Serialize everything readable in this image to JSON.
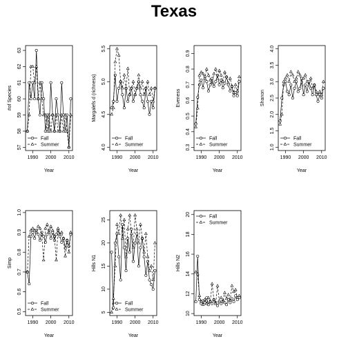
{
  "title": "Texas",
  "legend_fall": "Fall",
  "legend_summer": "Summer",
  "years": [
    1987,
    1988,
    1989,
    1990,
    1991,
    1992,
    1993,
    1994,
    1995,
    1996,
    1997,
    1998,
    1999,
    2000,
    2001,
    2002,
    2003,
    2004,
    2005,
    2006,
    2007,
    2008,
    2009,
    2010,
    2011
  ],
  "chart_data": [
    {
      "type": "line",
      "ylabel": "#of Species",
      "xlabel": "Year",
      "xlim": [
        1986,
        2012
      ],
      "ylim": [
        56.8,
        63.3
      ],
      "x_ticks": [
        1990,
        2000,
        2010
      ],
      "y_ticks": [
        57,
        58,
        59,
        60,
        61,
        62,
        63
      ],
      "legend_position": "bottom-left",
      "series": [
        {
          "name": "Fall",
          "marker": "circle",
          "linestyle": "solid",
          "values": [
            58,
            61,
            60,
            61,
            60,
            63,
            60,
            59,
            61,
            60,
            58,
            59,
            58,
            61,
            59,
            58,
            60,
            59,
            58,
            61,
            59,
            58,
            59,
            57,
            60
          ]
        },
        {
          "name": "Summer",
          "marker": "triangle",
          "linestyle": "dashed",
          "values": [
            58,
            59,
            62,
            62,
            61,
            62,
            60,
            61,
            60,
            59,
            59,
            58,
            59,
            58,
            59,
            58,
            59,
            58,
            58,
            59,
            58,
            59,
            58,
            57,
            59
          ]
        }
      ]
    },
    {
      "type": "line",
      "ylabel": "Margalefs d (richness)",
      "xlabel": "Year",
      "xlim": [
        1986,
        2012
      ],
      "ylim": [
        3.95,
        5.55
      ],
      "x_ticks": [
        1990,
        2000,
        2010
      ],
      "y_ticks": [
        4.0,
        4.5,
        5.0,
        5.5
      ],
      "legend_position": "bottom-left",
      "series": [
        {
          "name": "Fall",
          "marker": "circle",
          "linestyle": "solid",
          "values": [
            4.6,
            4.7,
            5.1,
            4.7,
            4.9,
            5.0,
            4.8,
            4.6,
            4.9,
            4.7,
            4.8,
            4.9,
            4.7,
            4.8,
            4.9,
            5.0,
            4.8,
            4.7,
            4.6,
            4.9,
            4.7,
            4.5,
            4.7,
            4.6,
            4.9
          ]
        },
        {
          "name": "Summer",
          "marker": "triangle",
          "linestyle": "dashed",
          "values": [
            4.5,
            4.6,
            5.3,
            5.5,
            5.4,
            5.0,
            4.9,
            5.1,
            4.9,
            5.2,
            4.8,
            4.9,
            5.0,
            4.8,
            4.9,
            5.1,
            4.9,
            5.0,
            4.8,
            4.9,
            5.0,
            4.8,
            4.9,
            4.7,
            4.9
          ]
        }
      ]
    },
    {
      "type": "line",
      "ylabel": "Eveness",
      "xlabel": "Year",
      "xlim": [
        1986,
        2012
      ],
      "ylim": [
        0.28,
        0.95
      ],
      "x_ticks": [
        1990,
        2000,
        2010
      ],
      "y_ticks": [
        0.3,
        0.4,
        0.5,
        0.6,
        0.7,
        0.8,
        0.9
      ],
      "legend_position": "bottom-left",
      "series": [
        {
          "name": "Fall",
          "marker": "circle",
          "linestyle": "solid",
          "values": [
            0.45,
            0.62,
            0.7,
            0.73,
            0.68,
            0.75,
            0.72,
            0.66,
            0.7,
            0.74,
            0.69,
            0.72,
            0.76,
            0.7,
            0.73,
            0.68,
            0.71,
            0.75,
            0.7,
            0.66,
            0.69,
            0.63,
            0.65,
            0.63,
            0.72
          ]
        },
        {
          "name": "Summer",
          "marker": "triangle",
          "linestyle": "dashed",
          "values": [
            0.43,
            0.55,
            0.76,
            0.78,
            0.77,
            0.74,
            0.8,
            0.76,
            0.73,
            0.71,
            0.77,
            0.8,
            0.74,
            0.79,
            0.76,
            0.72,
            0.78,
            0.75,
            0.71,
            0.74,
            0.69,
            0.65,
            0.7,
            0.66,
            0.75
          ]
        }
      ]
    },
    {
      "type": "line",
      "ylabel": "Shanon",
      "xlabel": "Year",
      "xlim": [
        1986,
        2012
      ],
      "ylim": [
        0.9,
        4.1
      ],
      "x_ticks": [
        1990,
        2000,
        2010
      ],
      "y_ticks": [
        1.0,
        1.5,
        2.0,
        2.5,
        3.0,
        3.5,
        4.0
      ],
      "legend_position": "bottom-left",
      "series": [
        {
          "name": "Fall",
          "marker": "circle",
          "linestyle": "solid",
          "values": [
            1.8,
            2.5,
            2.9,
            3.0,
            2.7,
            2.6,
            2.9,
            2.5,
            2.8,
            3.0,
            2.7,
            2.8,
            3.1,
            2.6,
            2.9,
            2.7,
            3.0,
            2.8,
            2.6,
            2.9,
            2.6,
            2.4,
            2.6,
            2.5,
            2.8
          ]
        },
        {
          "name": "Summer",
          "marker": "triangle",
          "linestyle": "dashed",
          "values": [
            1.7,
            2.0,
            3.0,
            3.1,
            3.2,
            3.0,
            3.3,
            3.2,
            3.0,
            3.1,
            3.3,
            3.2,
            2.9,
            3.1,
            3.2,
            3.0,
            2.9,
            3.1,
            2.8,
            2.9,
            2.7,
            2.6,
            2.7,
            2.6,
            3.0
          ]
        }
      ]
    },
    {
      "type": "line",
      "ylabel": "Simp",
      "xlabel": "Year",
      "xlim": [
        1986,
        2012
      ],
      "ylim": [
        0.48,
        1.01
      ],
      "x_ticks": [
        1990,
        2000,
        2010
      ],
      "y_ticks": [
        0.5,
        0.6,
        0.7,
        0.8,
        0.9,
        1.0
      ],
      "legend_position": "bottom-left",
      "series": [
        {
          "name": "Fall",
          "marker": "circle",
          "linestyle": "solid",
          "values": [
            0.7,
            0.64,
            0.88,
            0.9,
            0.87,
            0.91,
            0.89,
            0.86,
            0.9,
            0.88,
            0.85,
            0.89,
            0.91,
            0.87,
            0.9,
            0.86,
            0.89,
            0.91,
            0.88,
            0.85,
            0.87,
            0.82,
            0.86,
            0.83,
            0.89
          ]
        },
        {
          "name": "Summer",
          "marker": "triangle",
          "linestyle": "dashed",
          "values": [
            0.7,
            0.88,
            0.91,
            0.92,
            0.91,
            0.9,
            0.93,
            0.92,
            0.89,
            0.76,
            0.92,
            0.94,
            0.9,
            0.93,
            0.91,
            0.88,
            0.76,
            0.92,
            0.89,
            0.9,
            0.87,
            0.78,
            0.86,
            0.8,
            0.9
          ]
        }
      ]
    },
    {
      "type": "line",
      "ylabel": "Hills N1",
      "xlabel": "Year",
      "xlim": [
        1986,
        2012
      ],
      "ylim": [
        4.3,
        27
      ],
      "x_ticks": [
        1990,
        2000,
        2010
      ],
      "y_ticks": [
        5,
        10,
        15,
        20,
        25
      ],
      "legend_position": "bottom-left",
      "series": [
        {
          "name": "Fall",
          "marker": "circle",
          "linestyle": "solid",
          "values": [
            18,
            6,
            20,
            22,
            17,
            12,
            24,
            19,
            14,
            21,
            18,
            23,
            16,
            20,
            22,
            15,
            19,
            21,
            17,
            13,
            16,
            12,
            11,
            10,
            14
          ]
        },
        {
          "name": "Summer",
          "marker": "triangle",
          "linestyle": "dashed",
          "values": [
            5,
            8,
            15,
            24,
            22,
            26,
            21,
            25,
            17,
            23,
            26,
            22,
            19,
            26,
            23,
            20,
            24,
            21,
            18,
            22,
            17,
            14,
            15,
            12,
            20
          ]
        }
      ]
    },
    {
      "type": "line",
      "ylabel": "Hills N2",
      "xlabel": "Year",
      "xlim": [
        1986,
        2012
      ],
      "ylim": [
        9.8,
        20.4
      ],
      "x_ticks": [
        1990,
        2000,
        2010
      ],
      "y_ticks": [
        10,
        12,
        14,
        16,
        18,
        20
      ],
      "legend_position": "top-left",
      "series": [
        {
          "name": "Fall",
          "marker": "circle",
          "linestyle": "solid",
          "values": [
            11.2,
            15.8,
            11.4,
            11.0,
            11.3,
            11.1,
            11.6,
            10.9,
            11.2,
            11.0,
            11.4,
            11.1,
            10.8,
            11.2,
            11.0,
            11.3,
            11.1,
            10.9,
            11.4,
            11.1,
            11.5,
            11.2,
            11.8,
            11.4,
            11.6
          ]
        },
        {
          "name": "Summer",
          "marker": "triangle",
          "linestyle": "dashed",
          "values": [
            14.2,
            14.0,
            11.8,
            11.2,
            10.9,
            11.4,
            11.0,
            11.6,
            11.2,
            13.0,
            11.4,
            11.0,
            12.8,
            11.3,
            11.6,
            11.2,
            12.1,
            11.5,
            11.9,
            11.3,
            12.8,
            12.2,
            12.4,
            11.6,
            11.8
          ]
        }
      ]
    }
  ]
}
